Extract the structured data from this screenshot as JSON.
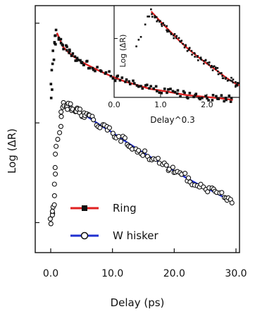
{
  "chart_data": [
    {
      "type": "scatter",
      "title": "",
      "xlabel": "Delay (ps)",
      "ylabel": "Log (ΔR)",
      "xlim": [
        -1,
        30
      ],
      "xticks": [
        "0.0",
        "10.0",
        "20.0",
        "30.0"
      ],
      "y_scale": "log",
      "grid": false,
      "legend_position": "bottom-left",
      "series": [
        {
          "name": "Ring",
          "marker": "filled-square",
          "color": "#111111",
          "fit_color": "#e02020",
          "x": [
            0.0,
            0.5,
            1.0,
            2.0,
            3.0,
            4.0,
            5.0,
            6.0,
            8.0,
            10.0,
            12.0,
            14.0,
            16.0,
            18.0,
            20.0,
            22.0,
            24.0,
            26.0,
            28.0,
            29.5
          ],
          "y": [
            0.18,
            0.55,
            0.8,
            0.58,
            0.5,
            0.45,
            0.41,
            0.38,
            0.33,
            0.29,
            0.26,
            0.24,
            0.22,
            0.21,
            0.2,
            0.19,
            0.185,
            0.18,
            0.175,
            0.17
          ]
        },
        {
          "name": "W hisker",
          "marker": "open-circle",
          "color": "#111111",
          "fit_color": "#2030d0",
          "x": [
            0.0,
            0.5,
            1.0,
            2.0,
            3.0,
            4.0,
            5.0,
            6.0,
            8.0,
            10.0,
            12.0,
            14.0,
            16.0,
            18.0,
            20.0,
            22.0,
            24.0,
            26.0,
            28.0,
            29.5
          ],
          "y": [
            0.01,
            0.015,
            0.06,
            0.155,
            0.145,
            0.135,
            0.125,
            0.115,
            0.095,
            0.08,
            0.066,
            0.055,
            0.046,
            0.039,
            0.033,
            0.028,
            0.024,
            0.021,
            0.018,
            0.016
          ]
        }
      ]
    },
    {
      "type": "scatter",
      "title": "",
      "xlabel": "Delay^0.3",
      "ylabel": "Log (ΔR)",
      "xlim": [
        0.0,
        2.7
      ],
      "xticks": [
        "0.0",
        "1.0",
        "2.0"
      ],
      "y_scale": "log",
      "grid": false,
      "series": [
        {
          "name": "",
          "marker": "dot",
          "color": "#111111",
          "fit_color": "#e02020",
          "x": [
            0.5,
            0.6,
            0.7,
            0.8,
            1.0,
            1.2,
            1.4,
            1.6,
            1.8,
            2.0,
            2.2,
            2.4,
            2.6,
            2.7
          ],
          "y": [
            0.5,
            0.62,
            0.85,
            0.95,
            0.8,
            0.68,
            0.58,
            0.5,
            0.44,
            0.39,
            0.35,
            0.31,
            0.28,
            0.27
          ]
        }
      ]
    }
  ]
}
